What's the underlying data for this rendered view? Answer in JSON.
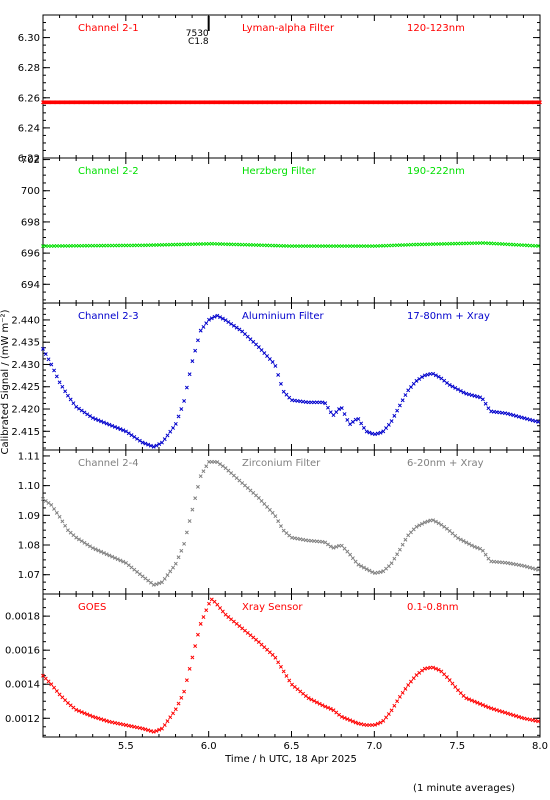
{
  "colors": {
    "red": "#ff0000",
    "green": "#00e000",
    "blue": "#0000cc",
    "gray": "#808080",
    "axis": "#000000"
  },
  "figure": {
    "xlabel": "Time / h UTC, 18 Apr 2025",
    "ylabel": "Calibrated Signal / (mW m⁻²)",
    "footnote": "(1 minute averages)",
    "flare_marker": {
      "time": 6.0,
      "id": "7530",
      "class": "C1.8"
    }
  },
  "chart_data": [
    {
      "type": "scatter",
      "panel": 1,
      "color": "red",
      "labels": [
        "Channel 2-1",
        "Lyman-alpha Filter",
        "120-123nm"
      ],
      "xlim": [
        5.0,
        8.0
      ],
      "ylim": [
        6.22,
        6.315
      ],
      "xticks": [
        5.5,
        6.0,
        6.5,
        7.0,
        7.5,
        8.0
      ],
      "yticks": [
        6.22,
        6.24,
        6.26,
        6.28,
        6.3
      ],
      "ytick_labels": [
        "6.22",
        "6.24",
        "6.26",
        "6.28",
        "6.30"
      ],
      "x": [
        5.0,
        8.0
      ],
      "y": [
        6.257,
        6.257
      ]
    },
    {
      "type": "scatter",
      "panel": 2,
      "color": "green",
      "labels": [
        "Channel 2-2",
        "Herzberg Filter",
        "190-222nm"
      ],
      "xlim": [
        5.0,
        8.0
      ],
      "ylim": [
        692.8,
        702.1
      ],
      "xticks": [
        5.5,
        6.0,
        6.5,
        7.0,
        7.5,
        8.0
      ],
      "yticks": [
        694,
        696,
        698,
        700,
        702
      ],
      "ytick_labels": [
        "694",
        "696",
        "698",
        "700",
        "702"
      ],
      "x": [
        5.0,
        5.6,
        6.02,
        6.5,
        7.0,
        7.25,
        7.66,
        8.0
      ],
      "y": [
        696.45,
        696.5,
        696.6,
        696.45,
        696.45,
        696.55,
        696.65,
        696.45
      ]
    },
    {
      "type": "scatter",
      "panel": 3,
      "color": "blue",
      "labels": [
        "Channel 2-3",
        "Aluminium Filter",
        "17-80nm + Xray"
      ],
      "xlim": [
        5.0,
        8.0
      ],
      "ylim": [
        2.4108,
        2.4438
      ],
      "xticks": [
        5.5,
        6.0,
        6.5,
        7.0,
        7.5,
        8.0
      ],
      "yticks": [
        2.415,
        2.42,
        2.425,
        2.43,
        2.435,
        2.44
      ],
      "ytick_labels": [
        "2.415",
        "2.420",
        "2.425",
        "2.430",
        "2.435",
        "2.440"
      ],
      "x": [
        5.0,
        5.05,
        5.1,
        5.15,
        5.2,
        5.3,
        5.4,
        5.5,
        5.6,
        5.67,
        5.72,
        5.8,
        5.85,
        5.9,
        5.95,
        6.0,
        6.05,
        6.1,
        6.2,
        6.3,
        6.4,
        6.45,
        6.5,
        6.6,
        6.7,
        6.75,
        6.8,
        6.85,
        6.9,
        6.95,
        7.0,
        7.05,
        7.1,
        7.15,
        7.2,
        7.25,
        7.3,
        7.35,
        7.4,
        7.45,
        7.5,
        7.55,
        7.6,
        7.65,
        7.7,
        7.8,
        7.9,
        8.0
      ],
      "y": [
        2.4335,
        2.43,
        2.426,
        2.423,
        2.4205,
        2.418,
        2.4165,
        2.415,
        2.4125,
        2.4115,
        2.4125,
        2.4165,
        2.4215,
        2.4305,
        2.4375,
        2.44,
        2.441,
        2.44,
        2.4375,
        2.434,
        2.43,
        2.424,
        2.422,
        2.4215,
        2.4215,
        2.4185,
        2.4205,
        2.4165,
        2.418,
        2.415,
        2.4143,
        2.4148,
        2.417,
        2.4205,
        2.424,
        2.4262,
        2.4275,
        2.428,
        2.427,
        2.4255,
        2.4245,
        2.4235,
        2.423,
        2.4225,
        2.4195,
        2.419,
        2.418,
        2.417
      ]
    },
    {
      "type": "scatter",
      "panel": 4,
      "color": "gray",
      "labels": [
        "Channel 2-4",
        "Zirconium Filter",
        "6-20nm + Xray"
      ],
      "xlim": [
        5.0,
        8.0
      ],
      "ylim": [
        1.0635,
        1.112
      ],
      "xticks": [
        5.5,
        6.0,
        6.5,
        7.0,
        7.5,
        8.0
      ],
      "yticks": [
        1.07,
        1.08,
        1.09,
        1.1,
        1.11
      ],
      "ytick_labels": [
        "1.07",
        "1.08",
        "1.09",
        "1.10",
        "1.11"
      ],
      "x": [
        5.0,
        5.05,
        5.1,
        5.15,
        5.2,
        5.3,
        5.4,
        5.5,
        5.6,
        5.67,
        5.72,
        5.8,
        5.85,
        5.9,
        5.95,
        6.0,
        6.05,
        6.1,
        6.2,
        6.3,
        6.4,
        6.45,
        6.5,
        6.6,
        6.7,
        6.75,
        6.8,
        6.85,
        6.9,
        6.95,
        7.0,
        7.05,
        7.1,
        7.15,
        7.2,
        7.25,
        7.3,
        7.35,
        7.4,
        7.45,
        7.5,
        7.55,
        7.6,
        7.65,
        7.7,
        7.8,
        7.9,
        8.0
      ],
      "y": [
        1.0955,
        1.0935,
        1.0895,
        1.085,
        1.0825,
        1.079,
        1.0765,
        1.074,
        1.0695,
        1.0665,
        1.0675,
        1.0735,
        1.08,
        1.0915,
        1.103,
        1.108,
        1.108,
        1.106,
        1.101,
        1.096,
        1.09,
        1.085,
        1.0825,
        1.0815,
        1.081,
        1.079,
        1.08,
        1.077,
        1.0735,
        1.072,
        1.0705,
        1.071,
        1.0735,
        1.078,
        1.083,
        1.086,
        1.0875,
        1.0885,
        1.087,
        1.085,
        1.0825,
        1.081,
        1.0795,
        1.0785,
        1.0745,
        1.074,
        1.073,
        1.0715
      ]
    },
    {
      "type": "scatter",
      "panel": 5,
      "color": "red",
      "labels": [
        "GOES",
        "Xray Sensor",
        "0.1-0.8nm"
      ],
      "xlim": [
        5.0,
        8.0
      ],
      "ylim": [
        0.00109,
        0.00193
      ],
      "xticks": [
        5.5,
        6.0,
        6.5,
        7.0,
        7.5,
        8.0
      ],
      "yticks": [
        0.0012,
        0.0014,
        0.0016,
        0.0018
      ],
      "ytick_labels": [
        "0.0012",
        "0.0014",
        "0.0016",
        "0.0018"
      ],
      "x": [
        5.0,
        5.05,
        5.1,
        5.15,
        5.2,
        5.3,
        5.4,
        5.5,
        5.6,
        5.67,
        5.72,
        5.8,
        5.85,
        5.9,
        5.95,
        6.0,
        6.02,
        6.05,
        6.1,
        6.2,
        6.3,
        6.4,
        6.45,
        6.5,
        6.6,
        6.7,
        6.75,
        6.8,
        6.85,
        6.9,
        6.95,
        7.0,
        7.05,
        7.1,
        7.15,
        7.2,
        7.25,
        7.3,
        7.35,
        7.4,
        7.45,
        7.5,
        7.55,
        7.6,
        7.65,
        7.7,
        7.8,
        7.9,
        8.0
      ],
      "y": [
        0.00145,
        0.0014,
        0.00134,
        0.00129,
        0.00125,
        0.00121,
        0.00118,
        0.00116,
        0.00114,
        0.00112,
        0.00114,
        0.00125,
        0.00135,
        0.00155,
        0.00175,
        0.00187,
        0.0019,
        0.00187,
        0.00181,
        0.00173,
        0.00165,
        0.00156,
        0.00148,
        0.0014,
        0.00132,
        0.00127,
        0.00125,
        0.00121,
        0.00119,
        0.00117,
        0.00116,
        0.00116,
        0.00118,
        0.00124,
        0.00132,
        0.00139,
        0.00145,
        0.00149,
        0.0015,
        0.00148,
        0.00143,
        0.00137,
        0.00132,
        0.0013,
        0.00128,
        0.00126,
        0.00123,
        0.0012,
        0.00118
      ]
    }
  ]
}
